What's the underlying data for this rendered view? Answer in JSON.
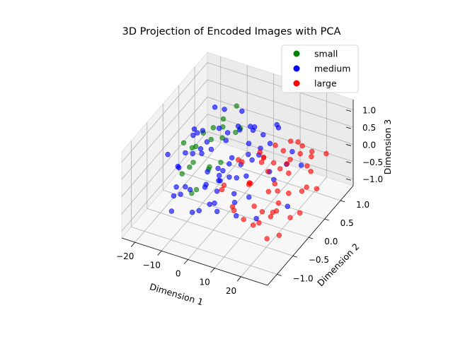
{
  "chart_data": {
    "type": "scatter",
    "projection": "3d",
    "title": "3D Projection of Encoded Images with PCA",
    "xlabel": "Dimension 1",
    "ylabel": "Dimension 2",
    "zlabel": "Dimension 3",
    "xlim": [
      -25,
      30
    ],
    "ylim": [
      -1.3,
      1.4
    ],
    "zlim": [
      -1.2,
      1.3
    ],
    "xticks": [
      "−20",
      "−10",
      "0",
      "10",
      "20"
    ],
    "yticks": [
      "−1.0",
      "−0.5",
      "0.0",
      "0.5",
      "1.0"
    ],
    "zticks": [
      "−1.0",
      "−0.5",
      "0.0",
      "0.5",
      "1.0"
    ],
    "grid": true,
    "legend_position": "top-right",
    "series": [
      {
        "name": "small",
        "color": "#008000",
        "points": [
          [
            -8,
            0.9,
            0.7
          ],
          [
            -12,
            0.5,
            0.4
          ],
          [
            -15,
            0.2,
            0.1
          ],
          [
            -10,
            -0.3,
            0.3
          ],
          [
            -14,
            0.6,
            -0.1
          ],
          [
            -9,
            0.1,
            -0.3
          ],
          [
            -13,
            -0.4,
            0.0
          ],
          [
            -6,
            0.7,
            0.2
          ],
          [
            -11,
            0.3,
            -0.5
          ],
          [
            -16,
            -0.1,
            0.5
          ],
          [
            -7,
            -0.6,
            -0.2
          ],
          [
            -12,
            0.8,
            0.1
          ],
          [
            -5,
            0.2,
            0.6
          ],
          [
            -10,
            -0.2,
            -0.6
          ],
          [
            -14,
            0.0,
            0.3
          ],
          [
            -8,
            0.4,
            -0.4
          ],
          [
            -3,
            0.6,
            0.5
          ],
          [
            -13,
            0.9,
            0.2
          ],
          [
            -9,
            -0.5,
            0.4
          ],
          [
            -11,
            0.1,
            0.7
          ]
        ]
      },
      {
        "name": "medium",
        "color": "#0000ff",
        "points": [
          [
            -12,
            0.3,
            0.2
          ],
          [
            -8,
            -0.2,
            0.5
          ],
          [
            -5,
            0.5,
            -0.3
          ],
          [
            -2,
            -0.6,
            0.1
          ],
          [
            0,
            0.8,
            0.4
          ],
          [
            3,
            -0.1,
            -0.5
          ],
          [
            -15,
            0.1,
            0.0
          ],
          [
            -10,
            -0.7,
            -0.2
          ],
          [
            -6,
            0.9,
            0.6
          ],
          [
            -3,
            0.2,
            0.8
          ],
          [
            1,
            -0.4,
            0.3
          ],
          [
            4,
            0.6,
            -0.1
          ],
          [
            -13,
            -0.3,
            0.5
          ],
          [
            -9,
            0.4,
            -0.6
          ],
          [
            -7,
            -0.8,
            0.2
          ],
          [
            -4,
            0.0,
            -0.4
          ],
          [
            -1,
            0.7,
            0.0
          ],
          [
            2,
            -0.9,
            0.6
          ],
          [
            5,
            0.3,
            0.1
          ],
          [
            -11,
            0.6,
            0.3
          ],
          [
            -14,
            -0.5,
            -0.3
          ],
          [
            -16,
            0.2,
            0.4
          ],
          [
            -8,
            1.0,
            -0.1
          ],
          [
            -6,
            -0.4,
            0.9
          ],
          [
            -2,
            0.4,
            -0.7
          ],
          [
            0,
            -0.2,
            0.2
          ],
          [
            6,
            0.1,
            0.5
          ],
          [
            8,
            -0.5,
            -0.2
          ],
          [
            -12,
            0.9,
            -0.4
          ],
          [
            -9,
            -1.0,
            0.1
          ],
          [
            -5,
            0.7,
            0.4
          ],
          [
            -3,
            -0.7,
            -0.5
          ],
          [
            1,
            0.9,
            -0.3
          ],
          [
            3,
            0.5,
            0.7
          ],
          [
            -17,
            -0.2,
            -0.1
          ],
          [
            -10,
            0.0,
            0.9
          ],
          [
            -7,
            0.3,
            -0.8
          ],
          [
            -4,
            -0.9,
            0.3
          ],
          [
            -1,
            -0.3,
            -0.9
          ],
          [
            2,
            0.2,
            0.0
          ],
          [
            7,
            0.7,
            0.2
          ],
          [
            10,
            -0.3,
            0.4
          ],
          [
            12,
            0.4,
            -0.4
          ],
          [
            9,
            0.8,
            0.6
          ],
          [
            11,
            -0.7,
            -0.3
          ],
          [
            14,
            0.1,
            0.2
          ],
          [
            -18,
            0.5,
            0.1
          ],
          [
            -11,
            -0.9,
            -0.5
          ],
          [
            -8,
            0.1,
            0.3
          ],
          [
            -6,
            0.5,
            -0.5
          ],
          [
            -15,
            0.8,
            0.6
          ],
          [
            -13,
            0.4,
            -0.8
          ],
          [
            -4,
            1.0,
            0.1
          ],
          [
            0,
            0.0,
            -0.2
          ],
          [
            4,
            -0.8,
            0.0
          ],
          [
            15,
            -0.4,
            -0.6
          ],
          [
            18,
            0.3,
            0.3
          ],
          [
            13,
            0.9,
            -0.1
          ],
          [
            -2,
            -1.0,
            -0.2
          ],
          [
            6,
            1.0,
            0.4
          ],
          [
            -19,
            0.0,
            -0.4
          ],
          [
            -16,
            -0.6,
            0.7
          ],
          [
            -9,
            0.6,
            0.9
          ],
          [
            -5,
            -0.2,
            -0.9
          ],
          [
            8,
            0.4,
            0.8
          ],
          [
            20,
            0.6,
            0.0
          ],
          [
            17,
            -0.8,
            0.5
          ],
          [
            22,
            0.0,
            -0.5
          ],
          [
            -12,
            -0.1,
            1.0
          ],
          [
            -7,
            0.2,
            -1.0
          ]
        ]
      },
      {
        "name": "large",
        "color": "#ff0000",
        "points": [
          [
            8,
            0.3,
            0.4
          ],
          [
            10,
            -0.2,
            0.1
          ],
          [
            12,
            0.6,
            -0.3
          ],
          [
            14,
            -0.5,
            0.5
          ],
          [
            16,
            0.1,
            -0.1
          ],
          [
            18,
            0.8,
            0.3
          ],
          [
            20,
            -0.3,
            -0.4
          ],
          [
            22,
            0.4,
            0.6
          ],
          [
            24,
            -0.7,
            0.0
          ],
          [
            11,
            0.9,
            -0.5
          ],
          [
            13,
            0.0,
            0.7
          ],
          [
            15,
            -0.8,
            -0.2
          ],
          [
            17,
            0.5,
            0.2
          ],
          [
            19,
            -0.1,
            -0.6
          ],
          [
            21,
            0.7,
            -0.1
          ],
          [
            23,
            -0.4,
            0.4
          ],
          [
            9,
            -0.6,
            -0.3
          ],
          [
            7,
            0.5,
            0.0
          ],
          [
            6,
            -0.1,
            0.5
          ],
          [
            25,
            0.2,
            -0.2
          ],
          [
            26,
            -0.3,
            0.3
          ],
          [
            27,
            0.5,
            -0.4
          ],
          [
            12,
            -0.9,
            0.2
          ],
          [
            14,
            1.0,
            0.1
          ],
          [
            16,
            -0.4,
            -0.7
          ],
          [
            18,
            0.2,
            0.8
          ],
          [
            20,
            0.9,
            -0.5
          ],
          [
            22,
            -0.8,
            0.2
          ],
          [
            10,
            0.4,
            -0.8
          ],
          [
            8,
            -0.9,
            0.6
          ],
          [
            24,
            0.6,
            0.5
          ],
          [
            26,
            -0.6,
            -0.6
          ],
          [
            28,
            0.1,
            0.1
          ],
          [
            15,
            0.3,
            -0.9
          ],
          [
            17,
            -0.2,
            0.6
          ],
          [
            19,
            1.0,
            -0.2
          ],
          [
            21,
            -1.0,
            0.0
          ],
          [
            13,
            -0.3,
            -0.4
          ],
          [
            11,
            0.1,
            0.4
          ],
          [
            9,
            0.7,
            0.2
          ],
          [
            5,
            0.2,
            -0.5
          ],
          [
            4,
            -0.5,
            0.2
          ],
          [
            29,
            -0.2,
            -0.3
          ],
          [
            27,
            0.8,
            0.3
          ],
          [
            23,
            0.0,
            -0.8
          ],
          [
            25,
            -0.9,
            -0.4
          ],
          [
            7,
            -0.3,
            0.8
          ],
          [
            6,
            0.9,
            -0.6
          ],
          [
            16,
            0.6,
            0.6
          ],
          [
            20,
            0.2,
            0.2
          ]
        ]
      }
    ]
  }
}
